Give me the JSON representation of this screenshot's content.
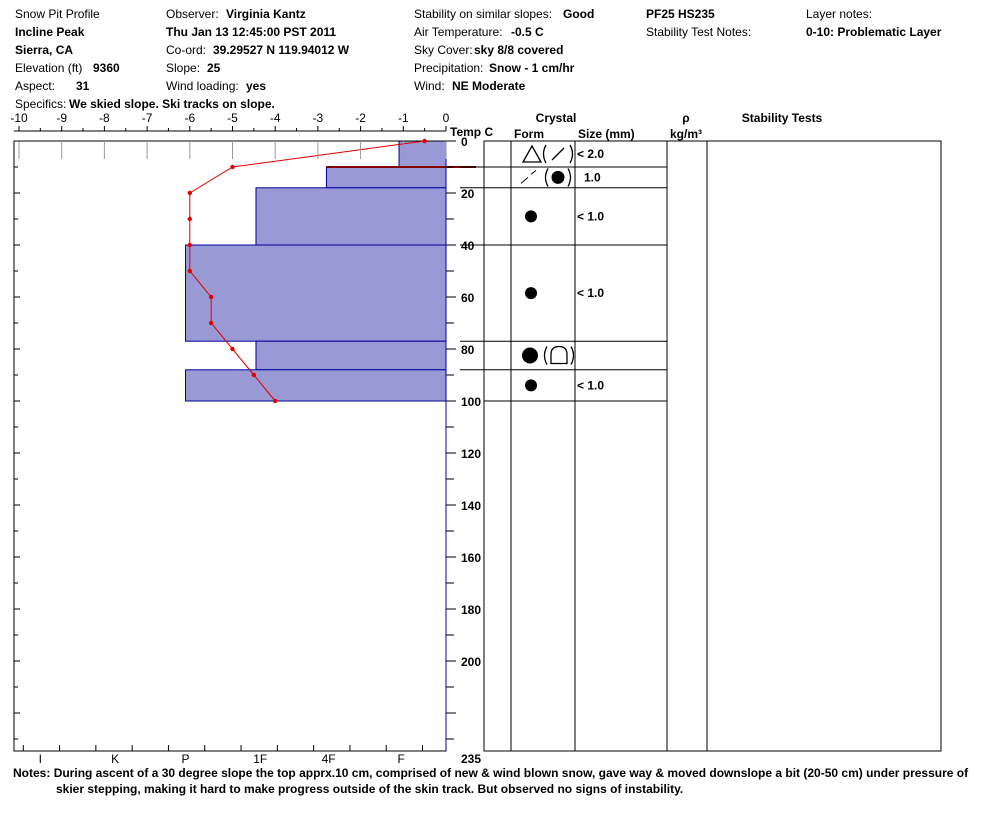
{
  "header": {
    "profile_title": "Snow Pit Profile",
    "location": "Incline Peak",
    "region": "Sierra, CA",
    "elevation_label": "Elevation (ft)",
    "elevation_value": "9360",
    "aspect_label": "Aspect:",
    "aspect_value": "31",
    "specifics_label": "Specifics:",
    "specifics_value": "We skied slope. Ski tracks on slope.",
    "observer_label": "Observer:",
    "observer_value": "Virginia Kantz",
    "datetime": "Thu Jan 13 12:45:00 PST 2011",
    "coord_label": "Co-ord:",
    "coord_value": "39.29527 N 119.94012 W",
    "slope_label": "Slope:",
    "slope_value": "25",
    "wind_loading_label": "Wind loading:",
    "wind_loading_value": "yes",
    "stability_label": "Stability on similar slopes:",
    "stability_value": "Good",
    "air_temp_label": "Air Temperature:",
    "air_temp_value": "-0.5 C",
    "sky_label": "Sky Cover:",
    "sky_value": "sky 8/8 covered",
    "precip_label": "Precipitation:",
    "precip_value": "Snow - 1 cm/hr",
    "wind_label": "Wind:",
    "wind_value": "NE Moderate",
    "pf_hs": "PF25 HS235",
    "stability_test_notes_label": "Stability Test Notes:",
    "layer_notes_label": "Layer notes:",
    "layer_notes_value": "0-10: Problematic Layer"
  },
  "table_headers": {
    "crystal": "Crystal",
    "form": "Form",
    "size": "Size (mm)",
    "rho": "ρ",
    "density_unit": "kg/m³",
    "stability_tests": "Stability Tests"
  },
  "crystal_layers": [
    {
      "top": 0,
      "bottom": 10,
      "form_icons": "△ (⁄)",
      "size": "< 2.0"
    },
    {
      "top": 10,
      "bottom": 18,
      "form_icons": "⁄ (●)",
      "size": "1.0"
    },
    {
      "top": 18,
      "bottom": 40,
      "form_icons": "●",
      "size": "< 1.0"
    },
    {
      "top": 40,
      "bottom": 77,
      "form_icons": "●",
      "size": "< 1.0"
    },
    {
      "top": 77,
      "bottom": 88,
      "form_icons": "● (∩)",
      "size": ""
    },
    {
      "top": 88,
      "bottom": 100,
      "form_icons": "●",
      "size": "< 1.0"
    }
  ],
  "chart_data": {
    "type": "snow-profile",
    "temp_axis": {
      "title": "Temp C",
      "ticks": [
        "-10",
        "-9",
        "-8",
        "-7",
        "-6",
        "-5",
        "-4",
        "-3",
        "-2",
        "-1",
        "0"
      ],
      "range": [
        -10,
        0
      ]
    },
    "depth_axis": {
      "ticks": [
        "0",
        "20",
        "40",
        "60",
        "80",
        "100",
        "120",
        "140",
        "160",
        "180",
        "200"
      ],
      "bottom_label": "235",
      "range": [
        0,
        235
      ]
    },
    "hardness_axis": {
      "ticks": [
        "I",
        "K",
        "P",
        "1F",
        "4F",
        "F"
      ],
      "positions": [
        -9.5,
        -7.75,
        -6.1,
        -4.35,
        -2.75,
        -1.05
      ]
    },
    "hardness_layers": [
      {
        "top": 0,
        "bottom": 10,
        "left_temp": -1.1
      },
      {
        "top": 10,
        "bottom": 18,
        "left_temp": -2.8
      },
      {
        "top": 18,
        "bottom": 40,
        "left_temp": -4.45
      },
      {
        "top": 40,
        "bottom": 77,
        "left_temp": -6.1
      },
      {
        "top": 77,
        "bottom": 88,
        "left_temp": -4.45
      },
      {
        "top": 88,
        "bottom": 100,
        "left_temp": -6.1
      }
    ],
    "temperature_profile": [
      {
        "depth": 0,
        "temp": -0.5
      },
      {
        "depth": 10,
        "temp": -5.0
      },
      {
        "depth": 20,
        "temp": -6.0
      },
      {
        "depth": 30,
        "temp": -6.0
      },
      {
        "depth": 40,
        "temp": -6.0
      },
      {
        "depth": 50,
        "temp": -6.0
      },
      {
        "depth": 60,
        "temp": -5.5
      },
      {
        "depth": 70,
        "temp": -5.5
      },
      {
        "depth": 80,
        "temp": -5.0
      },
      {
        "depth": 90,
        "temp": -4.5
      },
      {
        "depth": 100,
        "temp": -4.0
      }
    ],
    "colors": {
      "hardness_fill": "#9999d6",
      "hardness_edge": "#000099",
      "temperature_line": "#e00000"
    }
  },
  "notes": {
    "label": "Notes:",
    "line1": "During ascent of a 30 degree slope the top apprx.10 cm, comprised of new & wind blown snow, gave way & moved downslope a bit (20-50 cm) under pressure of",
    "line2": "skier stepping, making it hard to make progress outside of the skin track.  But observed no signs of instability."
  }
}
